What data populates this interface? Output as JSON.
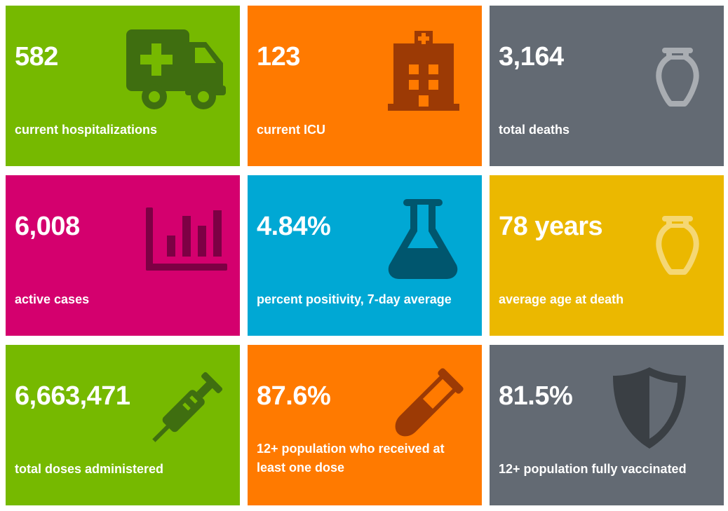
{
  "tiles": [
    {
      "id": "hospitalizations",
      "value": "582",
      "label": "current hospitalizations",
      "color": "#76b900",
      "icon": "ambulance-icon"
    },
    {
      "id": "icu",
      "value": "123",
      "label": "current ICU",
      "color": "#ff7a00",
      "icon": "hospital-icon"
    },
    {
      "id": "deaths",
      "value": "3,164",
      "label": "total deaths",
      "color": "#636a73",
      "icon": "urn-icon"
    },
    {
      "id": "active-cases",
      "value": "6,008",
      "label": "active cases",
      "color": "#d4006e",
      "icon": "bar-chart-icon"
    },
    {
      "id": "positivity",
      "value": "4.84%",
      "label": "percent positivity, 7-day average",
      "color": "#00a8d4",
      "icon": "flask-icon"
    },
    {
      "id": "avg-age",
      "value": "78 years",
      "label": "average age at death",
      "color": "#ebb800",
      "icon": "urn-icon"
    },
    {
      "id": "doses",
      "value": "6,663,471",
      "label": "total doses administered",
      "color": "#76b900",
      "icon": "syringe-icon"
    },
    {
      "id": "one-dose",
      "value": "87.6%",
      "label": "12+ population who received at least one dose",
      "color": "#ff7a00",
      "icon": "test-tube-icon"
    },
    {
      "id": "fully-vaccinated",
      "value": "81.5%",
      "label": "12+ population fully vaccinated",
      "color": "#636a73",
      "icon": "shield-icon"
    }
  ]
}
